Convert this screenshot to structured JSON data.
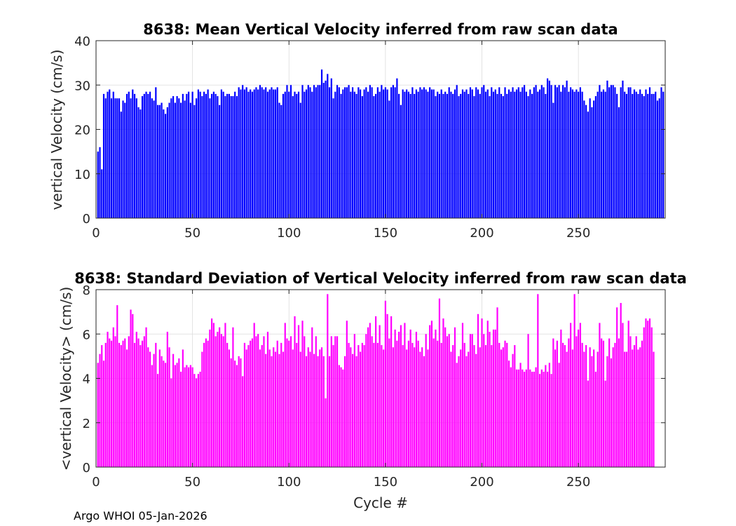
{
  "footer": "Argo WHOI 05-Jan-2026",
  "chart_data": [
    {
      "type": "bar",
      "title": "8638: Mean Vertical Velocity inferred from raw scan data",
      "xlabel": "",
      "ylabel": "vertical Velocity (cm/s)",
      "xlim": [
        0,
        295
      ],
      "ylim": [
        0,
        40
      ],
      "xticks": [
        0,
        50,
        100,
        150,
        200,
        250
      ],
      "yticks": [
        0,
        10,
        20,
        30,
        40
      ],
      "grid": true,
      "color": "#0000ff",
      "x_start": 1,
      "values": [
        15,
        16,
        11,
        28,
        27,
        28.5,
        29,
        27,
        28.5,
        27,
        27,
        27,
        24,
        26.5,
        26,
        28,
        28.5,
        27,
        29,
        28,
        27,
        25,
        24.5,
        27.5,
        28,
        28.5,
        28,
        28.5,
        27,
        26.5,
        29.5,
        25.5,
        25.5,
        26,
        24.5,
        23.5,
        25,
        26,
        27,
        27.5,
        26,
        27.5,
        27,
        26,
        28,
        26.5,
        28,
        28.5,
        26,
        28.5,
        25.5,
        27,
        29,
        28.5,
        27.5,
        28.5,
        28,
        29,
        27,
        28,
        28.5,
        28,
        27.5,
        25.5,
        29,
        28.5,
        27.5,
        28,
        28,
        27.5,
        27.5,
        28.5,
        27.5,
        29.5,
        29,
        30,
        29,
        29.5,
        28.5,
        29,
        28.5,
        29,
        29.5,
        29,
        30,
        29.5,
        29,
        29.5,
        28.5,
        29,
        29.5,
        29,
        29,
        29.5,
        26,
        25.5,
        28,
        28.5,
        30,
        28.5,
        30,
        27.5,
        28.5,
        28,
        28.5,
        26,
        30,
        28.5,
        29,
        30,
        29.5,
        28.5,
        30,
        29.5,
        30,
        30,
        33.5,
        30.5,
        31,
        32.5,
        29.5,
        31.5,
        27,
        28.5,
        30,
        29.5,
        28,
        29,
        29.5,
        29.5,
        30,
        28.5,
        29.5,
        28.5,
        28,
        29.5,
        29,
        27.5,
        29,
        29.5,
        28.5,
        30,
        29.5,
        27.5,
        28,
        29.5,
        28.5,
        30,
        29,
        29.5,
        29,
        26.5,
        29.5,
        30,
        29.5,
        31.5,
        28,
        25.5,
        29,
        28.5,
        29,
        28.5,
        28,
        29.5,
        28,
        29,
        28.5,
        29.5,
        29,
        29.5,
        29,
        28.5,
        29.5,
        29,
        29,
        27.5,
        28.5,
        28,
        29,
        28,
        28.5,
        28,
        29.5,
        28.5,
        28,
        29,
        30,
        27.5,
        28,
        29,
        28.5,
        29,
        28,
        29.5,
        29,
        27.5,
        29.5,
        29,
        28,
        29.5,
        30,
        28.5,
        29,
        27.5,
        29.5,
        28.5,
        29,
        28,
        29.5,
        28,
        27.5,
        29.5,
        28,
        29,
        28.5,
        29.5,
        28.5,
        29,
        29.5,
        28.5,
        29.5,
        30,
        28.5,
        27.5,
        29,
        28,
        29.5,
        30,
        28.5,
        29,
        30,
        29.5,
        28,
        31.5,
        31,
        30,
        26,
        30,
        29.5,
        30,
        28.5,
        30,
        29.5,
        31,
        28.5,
        29.5,
        29,
        28.5,
        29,
        28.5,
        29.5,
        28.5,
        26.5,
        25.5,
        24,
        27,
        25,
        26.5,
        27.5,
        28.5,
        30,
        28.5,
        29,
        28.5,
        31,
        29.5,
        30,
        30,
        29.5,
        28,
        25,
        29.5,
        31,
        28.5,
        28,
        29.5,
        29.5,
        28,
        29,
        28.5,
        28,
        29,
        28,
        27.5,
        29,
        28,
        29.5,
        28,
        28,
        28.5,
        26.5,
        27,
        29.5,
        28.5
      ]
    },
    {
      "type": "bar",
      "title": "8638: Standard Deviation of Vertical Velocity inferred from raw scan data",
      "xlabel": "Cycle #",
      "ylabel": "<vertical Velocity> (cm/s)",
      "xlim": [
        0,
        295
      ],
      "ylim": [
        0,
        8
      ],
      "xticks": [
        0,
        50,
        100,
        150,
        200,
        250
      ],
      "yticks": [
        0,
        2,
        4,
        6,
        8
      ],
      "grid": true,
      "color": "#ff00ff",
      "x_start": 1,
      "values": [
        4.7,
        5.1,
        5.5,
        4.8,
        5.6,
        6.1,
        5.8,
        5.7,
        6.3,
        5.9,
        7.3,
        5.6,
        5.5,
        5.7,
        5.8,
        5.3,
        5.9,
        7.1,
        6.9,
        5.6,
        6.1,
        5.8,
        5.5,
        5.7,
        5.9,
        6.3,
        5.4,
        5.2,
        4.6,
        5.1,
        5.6,
        4.2,
        5.3,
        5.0,
        4.8,
        4.7,
        6.1,
        5.4,
        4.0,
        5.1,
        4.6,
        4.7,
        4.9,
        4.3,
        5.3,
        4.5,
        4.6,
        4.5,
        4.6,
        4.5,
        4.2,
        4.0,
        4.2,
        4.3,
        5.2,
        5.6,
        5.8,
        5.7,
        6.2,
        6.7,
        6.5,
        5.9,
        6.1,
        6.3,
        6.0,
        5.9,
        6.5,
        5.6,
        5.3,
        4.9,
        6.3,
        4.8,
        4.6,
        5.0,
        4.9,
        4.1,
        5.6,
        5.3,
        5.5,
        5.7,
        5.8,
        6.5,
        5.9,
        6.0,
        5.3,
        5.5,
        5.9,
        5.1,
        6.1,
        5.3,
        5.0,
        5.4,
        5.2,
        5.7,
        5.1,
        5.6,
        5.2,
        6.5,
        5.8,
        5.7,
        5.9,
        5.3,
        6.8,
        5.6,
        6.4,
        5.2,
        6.6,
        5.9,
        5.0,
        5.4,
        5.2,
        6.3,
        5.1,
        5.9,
        5.0,
        5.3,
        5.4,
        5.0,
        3.1,
        7.8,
        5.0,
        5.9,
        5.5,
        5.9,
        5.9,
        4.6,
        4.5,
        4.4,
        5.0,
        6.6,
        5.6,
        5.4,
        5.1,
        6.0,
        5.0,
        5.5,
        5.2,
        5.6,
        5.5,
        6.0,
        6.3,
        6.5,
        5.9,
        5.6,
        6.8,
        5.6,
        6.4,
        5.5,
        5.3,
        7.5,
        6.9,
        5.8,
        6.8,
        5.4,
        6.2,
        5.7,
        6.1,
        6.4,
        5.5,
        6.5,
        5.3,
        5.7,
        6.2,
        5.6,
        5.4,
        6.1,
        5.7,
        5.2,
        5.4,
        5.0,
        6.0,
        5.3,
        6.4,
        6.6,
        5.8,
        6.2,
        5.7,
        7.6,
        5.6,
        6.7,
        6.3,
        5.9,
        6.0,
        5.2,
        5.5,
        6.3,
        4.7,
        5.0,
        5.3,
        6.5,
        5.6,
        5.0,
        5.2,
        6.0,
        6.0,
        5.5,
        5.1,
        6.9,
        5.4,
        6.7,
        6.0,
        5.5,
        6.6,
        6.1,
        5.5,
        6.2,
        6.2,
        7.2,
        5.6,
        5.3,
        5.4,
        5.7,
        5.6,
        4.8,
        4.5,
        5.1,
        5.5,
        4.4,
        4.4,
        4.7,
        4.4,
        4.3,
        4.4,
        6.0,
        4.4,
        4.3,
        4.3,
        4.5,
        7.8,
        4.2,
        4.4,
        4.3,
        4.6,
        4.3,
        4.7,
        4.2,
        5.8,
        5.3,
        5.7,
        4.7,
        6.2,
        5.6,
        5.5,
        5.2,
        5.8,
        6.5,
        5.3,
        7.8,
        5.9,
        6.2,
        6.5,
        5.6,
        5.2,
        5.5,
        3.9,
        5.4,
        5.0,
        5.3,
        4.3,
        5.2,
        6.5,
        5.8,
        5.7,
        3.9,
        5.0,
        5.8,
        4.9,
        5.4,
        5.6,
        7.2,
        5.8,
        7.4,
        6.5,
        5.2,
        5.2,
        6.6,
        5.9,
        5.3,
        5.5,
        5.9,
        5.3,
        5.4,
        5.7,
        6.3,
        6.7,
        6.6,
        6.7,
        6.3,
        5.2
      ]
    }
  ]
}
